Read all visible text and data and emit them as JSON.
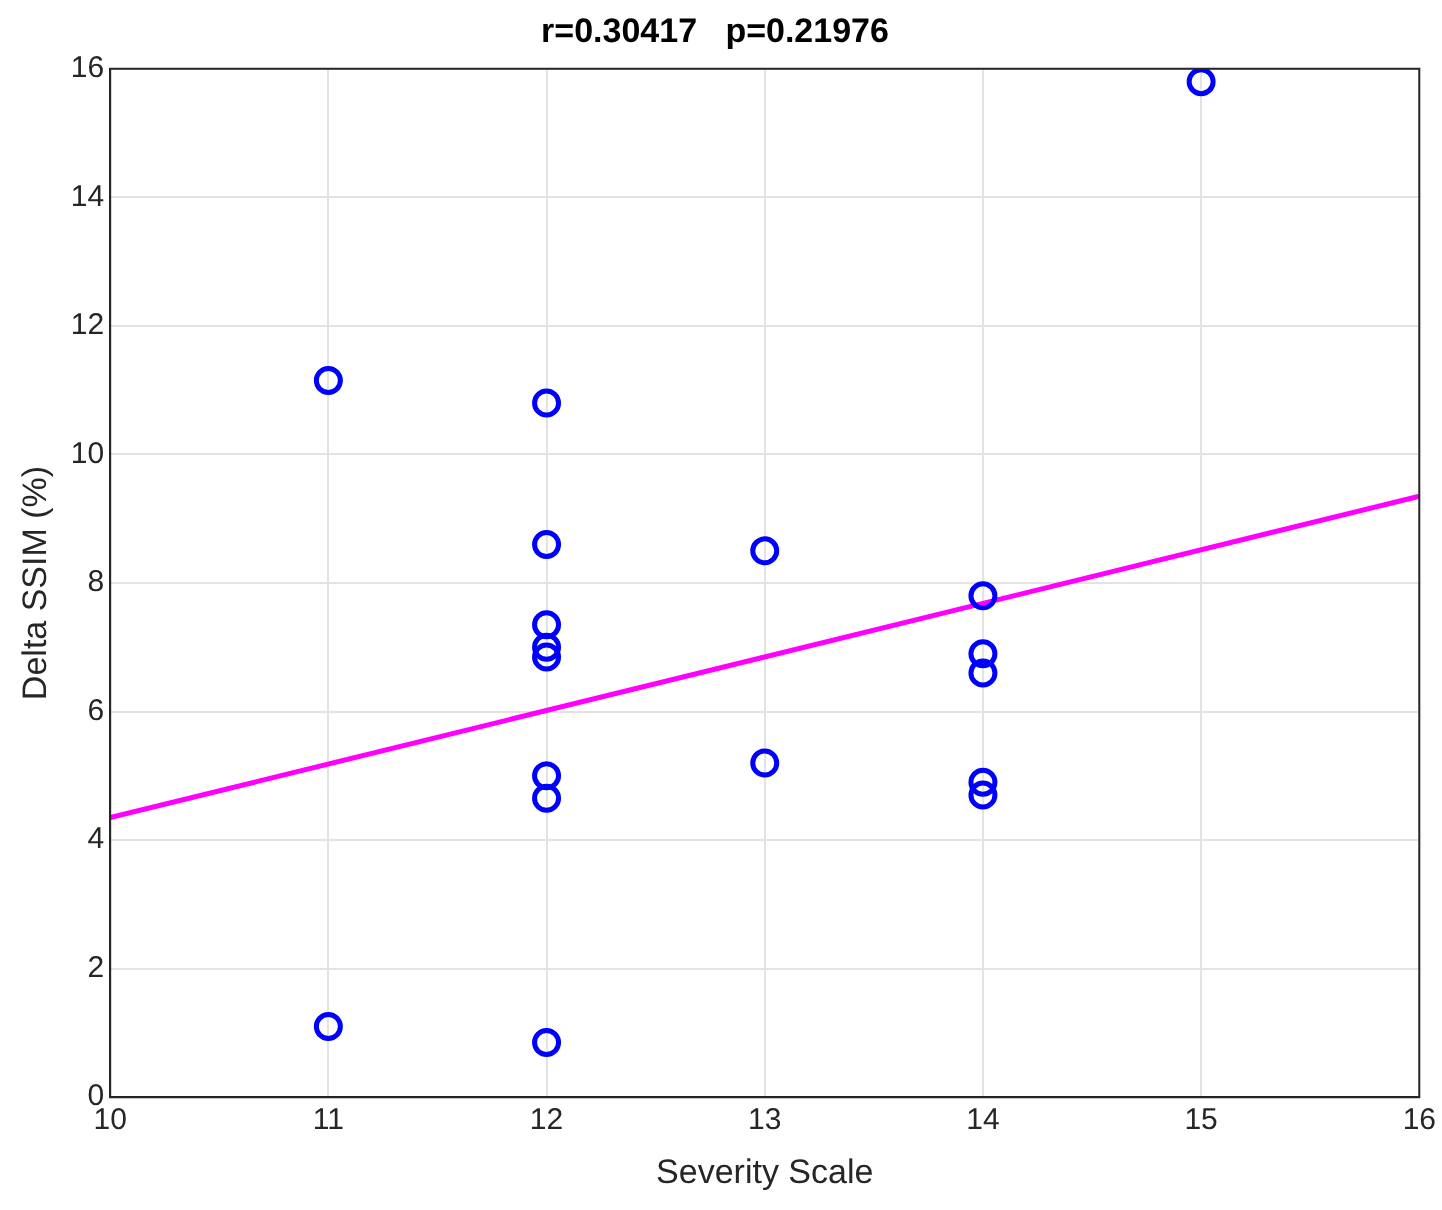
{
  "chart_data": {
    "type": "scatter",
    "title": "r=0.30417   p=0.21976",
    "xlabel": "Severity Scale",
    "ylabel": "Delta SSIM (%)",
    "xlim": [
      10,
      16
    ],
    "xticks": [
      10,
      11,
      12,
      13,
      14,
      15,
      16
    ],
    "ylim": [
      0,
      16
    ],
    "yticks": [
      0,
      2,
      4,
      6,
      8,
      10,
      12,
      14,
      16
    ],
    "grid": true,
    "legend": false,
    "marker": "circle",
    "series": [
      {
        "type": "scatter",
        "color": "#0000ff",
        "x": [
          11,
          11,
          12,
          12,
          12,
          12,
          12,
          12,
          12,
          12,
          13,
          13,
          14,
          14,
          14,
          14,
          14,
          15
        ],
        "values": [
          11.15,
          1.1,
          10.8,
          8.6,
          7.35,
          7.0,
          6.85,
          5.0,
          4.65,
          0.85,
          8.5,
          5.2,
          7.8,
          6.9,
          6.6,
          4.9,
          4.7,
          15.8
        ]
      },
      {
        "type": "line",
        "color": "#ff00ff",
        "marker": "none",
        "line_style": "solid",
        "x": [
          10,
          16
        ],
        "values": [
          4.35,
          9.35
        ]
      }
    ]
  }
}
